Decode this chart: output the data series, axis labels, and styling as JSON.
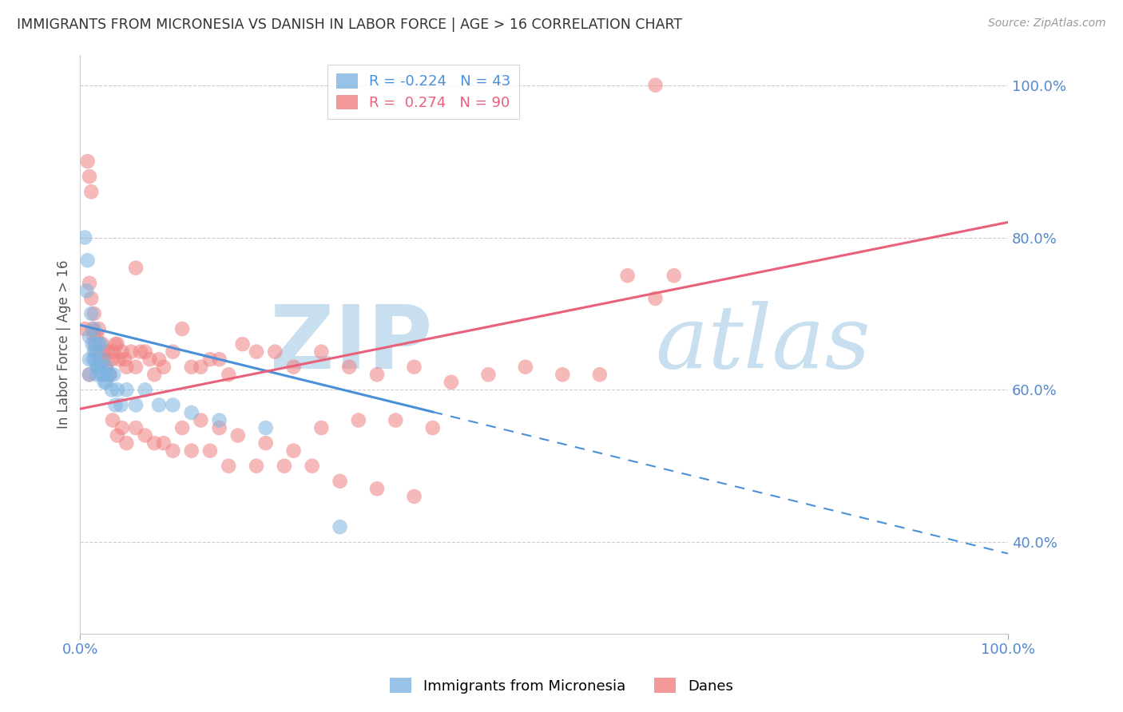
{
  "title": "IMMIGRANTS FROM MICRONESIA VS DANISH IN LABOR FORCE | AGE > 16 CORRELATION CHART",
  "source_text": "Source: ZipAtlas.com",
  "ylabel": "In Labor Force | Age > 16",
  "xlim": [
    0.0,
    1.0
  ],
  "ylim": [
    0.28,
    1.04
  ],
  "x_tick_labels": [
    "0.0%",
    "100.0%"
  ],
  "x_tick_positions": [
    0.0,
    1.0
  ],
  "y_tick_labels_right": [
    "40.0%",
    "60.0%",
    "80.0%",
    "100.0%"
  ],
  "y_tick_positions_right": [
    0.4,
    0.6,
    0.8,
    1.0
  ],
  "blue_R": -0.224,
  "blue_N": 43,
  "pink_R": 0.274,
  "pink_N": 90,
  "legend_label_blue": "Immigrants from Micronesia",
  "legend_label_pink": "Danes",
  "blue_color": "#7eb3e0",
  "pink_color": "#f08080",
  "blue_trend_color": "#4a90d9",
  "pink_trend_color": "#e8607a",
  "watermark_zip": "ZIP",
  "watermark_atlas": "atlas",
  "watermark_color": "#c8dff0",
  "grid_color": "#cccccc",
  "bg_color": "#ffffff",
  "title_color": "#333333",
  "axis_label_color": "#555555",
  "right_tick_color": "#5588cc",
  "bottom_tick_color": "#5588cc",
  "blue_trend_x0": 0.0,
  "blue_trend_y0": 0.685,
  "blue_trend_x_solid_end": 0.38,
  "blue_trend_slope": -0.3,
  "pink_trend_x0": 0.0,
  "pink_trend_y0": 0.575,
  "pink_trend_slope": 0.245,
  "blue_x": [
    0.005,
    0.007,
    0.008,
    0.01,
    0.01,
    0.01,
    0.012,
    0.013,
    0.014,
    0.015,
    0.015,
    0.016,
    0.016,
    0.017,
    0.018,
    0.018,
    0.019,
    0.02,
    0.02,
    0.022,
    0.022,
    0.023,
    0.024,
    0.025,
    0.026,
    0.028,
    0.028,
    0.03,
    0.032,
    0.034,
    0.036,
    0.038,
    0.04,
    0.044,
    0.05,
    0.06,
    0.07,
    0.085,
    0.1,
    0.12,
    0.15,
    0.2,
    0.28
  ],
  "blue_y": [
    0.8,
    0.73,
    0.77,
    0.67,
    0.64,
    0.62,
    0.7,
    0.66,
    0.64,
    0.68,
    0.65,
    0.66,
    0.64,
    0.65,
    0.63,
    0.62,
    0.63,
    0.66,
    0.63,
    0.66,
    0.63,
    0.62,
    0.64,
    0.62,
    0.61,
    0.63,
    0.61,
    0.62,
    0.62,
    0.6,
    0.62,
    0.58,
    0.6,
    0.58,
    0.6,
    0.58,
    0.6,
    0.58,
    0.58,
    0.57,
    0.56,
    0.55,
    0.42
  ],
  "pink_x": [
    0.005,
    0.008,
    0.01,
    0.012,
    0.013,
    0.015,
    0.015,
    0.016,
    0.018,
    0.019,
    0.02,
    0.022,
    0.024,
    0.025,
    0.026,
    0.028,
    0.03,
    0.032,
    0.034,
    0.036,
    0.038,
    0.04,
    0.042,
    0.045,
    0.048,
    0.05,
    0.055,
    0.06,
    0.065,
    0.07,
    0.075,
    0.08,
    0.085,
    0.09,
    0.1,
    0.11,
    0.12,
    0.13,
    0.14,
    0.15,
    0.16,
    0.175,
    0.19,
    0.21,
    0.23,
    0.26,
    0.29,
    0.32,
    0.36,
    0.4,
    0.44,
    0.48,
    0.52,
    0.56,
    0.59,
    0.62,
    0.64,
    0.11,
    0.13,
    0.15,
    0.17,
    0.2,
    0.23,
    0.26,
    0.3,
    0.34,
    0.38,
    0.035,
    0.04,
    0.045,
    0.05,
    0.06,
    0.07,
    0.08,
    0.09,
    0.1,
    0.12,
    0.14,
    0.16,
    0.19,
    0.22,
    0.25,
    0.28,
    0.32,
    0.36,
    0.01,
    0.01,
    0.012,
    0.06,
    0.62
  ],
  "pink_y": [
    0.68,
    0.9,
    0.88,
    0.72,
    0.68,
    0.7,
    0.67,
    0.66,
    0.67,
    0.65,
    0.68,
    0.64,
    0.66,
    0.65,
    0.64,
    0.63,
    0.65,
    0.62,
    0.64,
    0.65,
    0.66,
    0.66,
    0.64,
    0.65,
    0.64,
    0.63,
    0.65,
    0.63,
    0.65,
    0.65,
    0.64,
    0.62,
    0.64,
    0.63,
    0.65,
    0.68,
    0.63,
    0.63,
    0.64,
    0.64,
    0.62,
    0.66,
    0.65,
    0.65,
    0.63,
    0.65,
    0.63,
    0.62,
    0.63,
    0.61,
    0.62,
    0.63,
    0.62,
    0.62,
    0.75,
    0.72,
    0.75,
    0.55,
    0.56,
    0.55,
    0.54,
    0.53,
    0.52,
    0.55,
    0.56,
    0.56,
    0.55,
    0.56,
    0.54,
    0.55,
    0.53,
    0.55,
    0.54,
    0.53,
    0.53,
    0.52,
    0.52,
    0.52,
    0.5,
    0.5,
    0.5,
    0.5,
    0.48,
    0.47,
    0.46,
    0.74,
    0.62,
    0.86,
    0.76,
    1.0
  ]
}
